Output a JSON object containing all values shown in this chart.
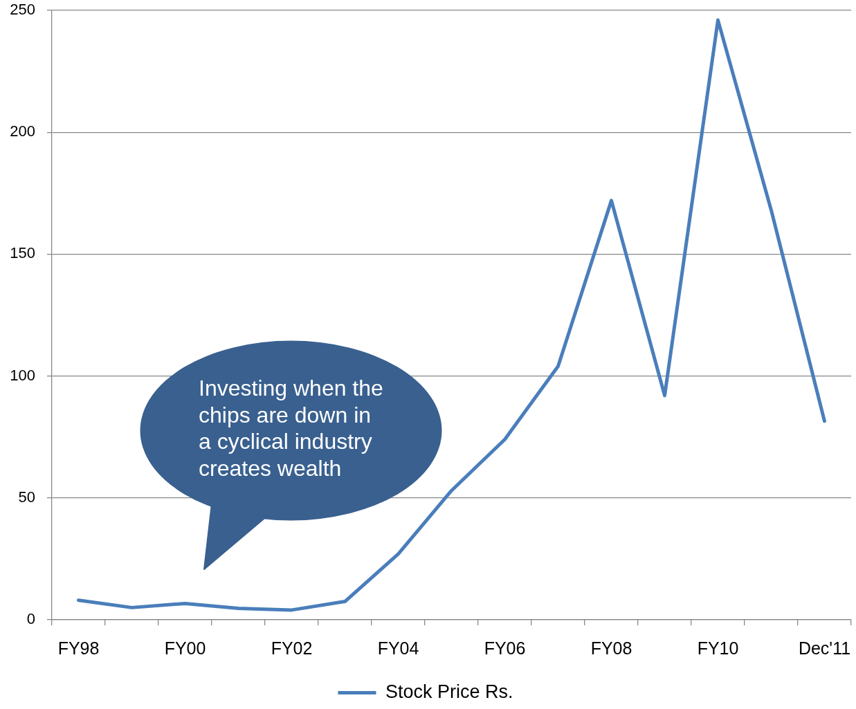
{
  "chart_data": {
    "type": "line",
    "categories": [
      "FY98",
      null,
      "FY00",
      null,
      "FY02",
      null,
      "FY04",
      null,
      "FY06",
      null,
      "FY08",
      null,
      "FY10",
      null,
      "Dec'11"
    ],
    "series": [
      {
        "name": "Stock Price Rs.",
        "color": "#4a7ebb",
        "values": [
          8,
          5,
          6.7,
          4.7,
          4,
          7.5,
          27,
          53,
          74,
          104,
          172,
          92,
          246,
          168,
          81.5
        ]
      }
    ],
    "ylim": [
      0,
      250
    ],
    "yticks": [
      0,
      50,
      100,
      150,
      200,
      250
    ],
    "grid": "y",
    "legend": "bottom",
    "marker": "none",
    "line_style": "solid",
    "annotations": [
      "Investing when the chips are down in a cyclical industry creates wealth"
    ]
  }
}
